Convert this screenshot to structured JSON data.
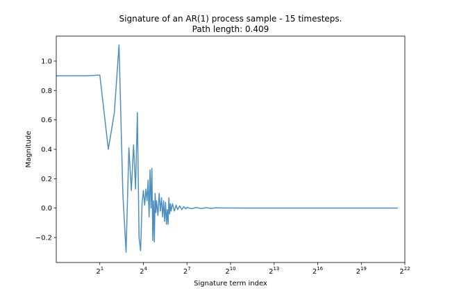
{
  "chart_data": {
    "type": "line",
    "title": "Signature of an AR(1) process sample - 15 timesteps.",
    "subtitle": "Path length: 0.409",
    "xlabel": "Signature term index",
    "ylabel": "Magnitude",
    "x_scale": "log2",
    "xlim": [
      0.25,
      4194304
    ],
    "ylim": [
      -0.37,
      1.17
    ],
    "grid": false,
    "legend": "none",
    "line_color": "#4c8fc0",
    "x_ticks": [
      {
        "value": 2,
        "base": "2",
        "exp": "1"
      },
      {
        "value": 16,
        "base": "2",
        "exp": "4"
      },
      {
        "value": 128,
        "base": "2",
        "exp": "7"
      },
      {
        "value": 1024,
        "base": "2",
        "exp": "10"
      },
      {
        "value": 8192,
        "base": "2",
        "exp": "13"
      },
      {
        "value": 65536,
        "base": "2",
        "exp": "16"
      },
      {
        "value": 524288,
        "base": "2",
        "exp": "19"
      },
      {
        "value": 4194304,
        "base": "2",
        "exp": "22"
      }
    ],
    "y_ticks": [
      "−0.2",
      "0.0",
      "0.2",
      "0.4",
      "0.6",
      "0.8",
      "1.0"
    ],
    "y_tick_values": [
      -0.2,
      0.0,
      0.2,
      0.4,
      0.6,
      0.8,
      1.0
    ],
    "series": [
      {
        "x": [
          0.25,
          0.5,
          1,
          2,
          3,
          4,
          5,
          6,
          7,
          8,
          9,
          10,
          11,
          12,
          13,
          14,
          15,
          16,
          17,
          18,
          19,
          20,
          21,
          22,
          23,
          24,
          25,
          26,
          27,
          28,
          29,
          30,
          32,
          34,
          36,
          38,
          40,
          42,
          44,
          46,
          48,
          50,
          52,
          54,
          56,
          58,
          60,
          64,
          70,
          76,
          82,
          90,
          100,
          110,
          120,
          128,
          160,
          200,
          256,
          320,
          400,
          512,
          700,
          1024,
          2048,
          8192,
          65536,
          524288,
          3000000
        ],
        "y": [
          0.9,
          0.9,
          0.9,
          0.905,
          0.4,
          0.65,
          1.11,
          0.1,
          -0.3,
          0.41,
          0.12,
          0.43,
          0.13,
          0.65,
          -0.2,
          -0.29,
          0.03,
          0.12,
          0.02,
          0.13,
          0.05,
          0.19,
          -0.06,
          0.26,
          0.0,
          0.27,
          -0.22,
          0.05,
          -0.23,
          0.1,
          -0.03,
          0.05,
          -0.05,
          0.1,
          -0.02,
          0.07,
          -0.06,
          0.05,
          -0.09,
          0.04,
          -0.11,
          -0.01,
          -0.11,
          0.07,
          -0.04,
          0.03,
          -0.02,
          0.03,
          -0.02,
          0.02,
          -0.01,
          0.015,
          -0.01,
          0.01,
          -0.005,
          0.005,
          -0.004,
          0.004,
          -0.003,
          0.003,
          -0.002,
          0.002,
          0.001,
          0.001,
          0.0,
          0.0,
          0.0,
          0.0,
          0.0
        ]
      }
    ]
  }
}
